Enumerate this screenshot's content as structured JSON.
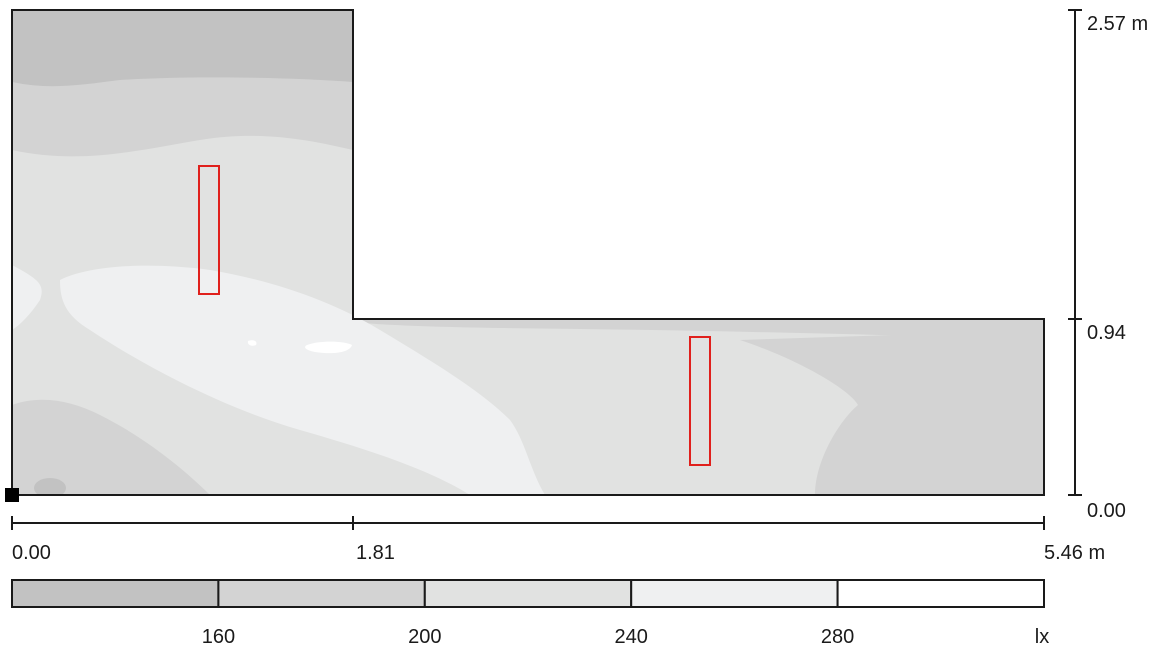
{
  "room_plan": {
    "vertical_scale": {
      "top_label": "2.57 m",
      "mid_label": "0.94",
      "bottom_label": "0.00"
    },
    "horizontal_scale": {
      "left_label": "0.00",
      "mid_label": "1.81",
      "right_label": "5.46 m"
    },
    "legend": {
      "bands": [
        {
          "color": "#c2c2c2"
        },
        {
          "color": "#d3d3d3"
        },
        {
          "color": "#e1e2e1"
        },
        {
          "color": "#eff0f1"
        },
        {
          "color": "#ffffff"
        }
      ],
      "ticks": [
        "160",
        "200",
        "240",
        "280"
      ],
      "unit": "lx"
    },
    "colors": {
      "outline": "#1a1a1a",
      "luminaire": "#e0201c",
      "origin_marker": "#000000"
    },
    "luminaire_count": 2
  }
}
